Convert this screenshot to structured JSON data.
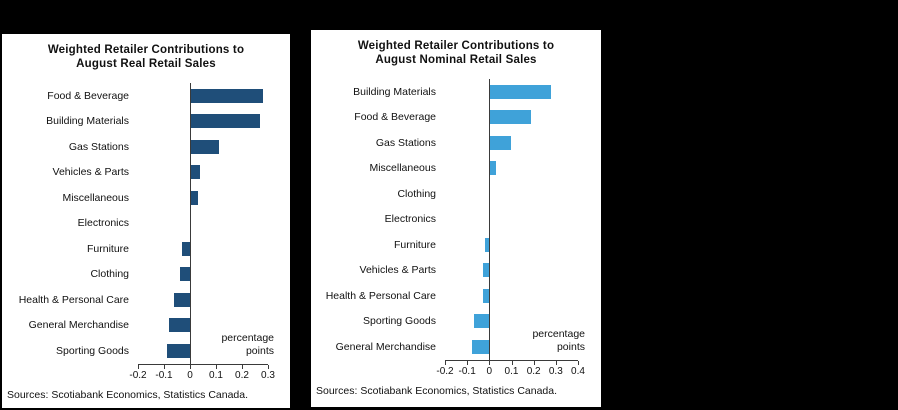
{
  "page": {
    "background_color": "#000000",
    "panel_background": "#ffffff"
  },
  "chart_data": [
    {
      "type": "bar",
      "orientation": "horizontal",
      "title": "Weighted Retailer Contributions to\nAugust Real Retail Sales",
      "categories": [
        "Food & Beverage",
        "Building Materials",
        "Gas Stations",
        "Vehicles & Parts",
        "Miscellaneous",
        "Electronics",
        "Furniture",
        "Clothing",
        "Health & Personal Care",
        "General Merchandise",
        "Sporting Goods"
      ],
      "values": [
        0.28,
        0.27,
        0.11,
        0.04,
        0.03,
        0,
        -0.03,
        -0.04,
        -0.06,
        -0.08,
        -0.09
      ],
      "xlim": [
        -0.2,
        0.3
      ],
      "tick_values": [
        -0.2,
        -0.1,
        0,
        0.1,
        0.2,
        0.3
      ],
      "tick_labels": [
        "-0.2",
        "-0.1",
        "0",
        "0.1",
        "0.2",
        "0.3"
      ],
      "xlabel": "percentage points",
      "ylabel": "",
      "grid": false,
      "legend": "none",
      "bar_color": "#1F4E79",
      "annotation": "percentage\npoints",
      "source": "Sources: Scotiabank Economics, Statistics Canada."
    },
    {
      "type": "bar",
      "orientation": "horizontal",
      "title": "Weighted Retailer Contributions to\nAugust Nominal Retail Sales",
      "categories": [
        "Building Materials",
        "Food & Beverage",
        "Gas Stations",
        "Miscellaneous",
        "Clothing",
        "Electronics",
        "Furniture",
        "Vehicles & Parts",
        "Health & Personal Care",
        "Sporting Goods",
        "General Merchandise"
      ],
      "values": [
        0.28,
        0.19,
        0.1,
        0.03,
        0,
        0,
        -0.02,
        -0.03,
        -0.03,
        -0.07,
        -0.08
      ],
      "xlim": [
        -0.2,
        0.4
      ],
      "tick_values": [
        -0.2,
        -0.1,
        0,
        0.1,
        0.2,
        0.3,
        0.4
      ],
      "tick_labels": [
        "-0.2",
        "-0.1",
        "0",
        "0.1",
        "0.2",
        "0.3",
        "0.4"
      ],
      "xlabel": "percentage points",
      "ylabel": "",
      "grid": false,
      "legend": "none",
      "bar_color": "#3FA2D9",
      "annotation": "percentage\npoints",
      "source": "Sources: Scotiabank Economics, Statistics Canada."
    }
  ]
}
